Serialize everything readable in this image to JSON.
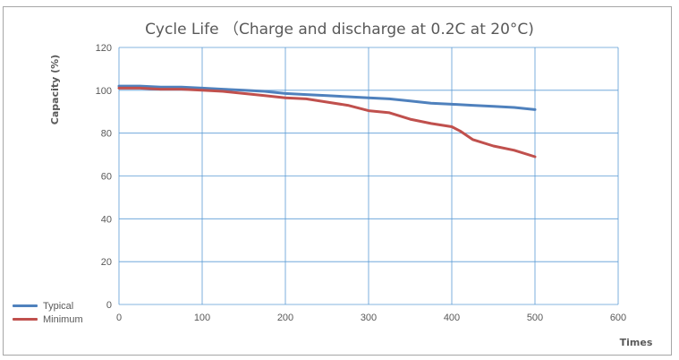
{
  "chart_data": {
    "type": "line",
    "title": "Cycle Life （Charge and discharge at 0.2C at 20°C)",
    "xlabel": "Times",
    "ylabel": "Capacity (%)",
    "xlim": [
      0,
      600
    ],
    "ylim": [
      0,
      120
    ],
    "xticks": [
      0,
      100,
      200,
      300,
      400,
      500,
      600
    ],
    "yticks": [
      0,
      20,
      40,
      60,
      80,
      100,
      120
    ],
    "grid": true,
    "legend_position": "bottom-left",
    "series": [
      {
        "name": "Typical",
        "color": "#4f81bd",
        "x": [
          0,
          25,
          50,
          75,
          100,
          125,
          150,
          175,
          200,
          225,
          250,
          275,
          300,
          325,
          350,
          375,
          400,
          425,
          450,
          475,
          500
        ],
        "y": [
          102,
          102,
          101.5,
          101.5,
          101,
          100.5,
          100,
          99.5,
          98.5,
          98,
          97.5,
          97,
          96.5,
          96,
          95,
          94,
          93.5,
          93,
          92.5,
          92,
          91
        ]
      },
      {
        "name": "Minimum",
        "color": "#c0504d",
        "x": [
          0,
          25,
          50,
          75,
          100,
          125,
          150,
          175,
          200,
          225,
          250,
          275,
          300,
          325,
          350,
          375,
          400,
          410,
          425,
          450,
          475,
          500
        ],
        "y": [
          101,
          101,
          100.5,
          100.5,
          100,
          99.5,
          98.5,
          97.5,
          96.5,
          96,
          94.5,
          93,
          90.5,
          89.5,
          86.5,
          84.5,
          83,
          81,
          77,
          74,
          72,
          69
        ]
      }
    ]
  }
}
